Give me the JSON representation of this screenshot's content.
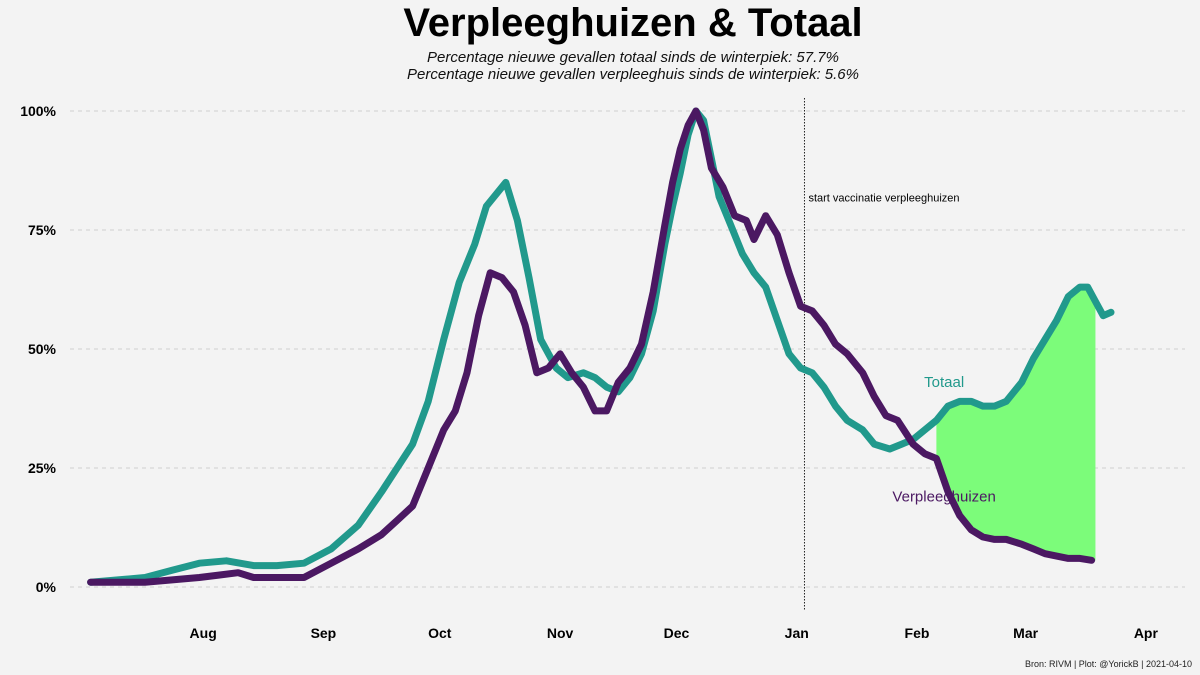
{
  "chart_data": {
    "type": "line",
    "title": "Verpleeghuizen & Totaal",
    "subtitle_lines": [
      "Percentage nieuwe gevallen totaal sinds de winterpiek: 57.7%",
      "Percentage nieuwe gevallen verpleeghuis sinds de winterpiek: 5.6%"
    ],
    "caption": "Bron: RIVM | Plot: @YorickB  |  2021-04-10",
    "xlabel": "",
    "ylabel": "",
    "xlim": [
      "2020-07-15",
      "2021-04-15"
    ],
    "ylim": [
      0,
      100
    ],
    "y_ticks": [
      {
        "value": 0,
        "label": "0%"
      },
      {
        "value": 25,
        "label": "25%"
      },
      {
        "value": 50,
        "label": "50%"
      },
      {
        "value": 75,
        "label": "75%"
      },
      {
        "value": 100,
        "label": "100%"
      }
    ],
    "x_ticks": [
      {
        "date": "2020-08-01",
        "label": "Aug"
      },
      {
        "date": "2020-09-01",
        "label": "Sep"
      },
      {
        "date": "2020-10-01",
        "label": "Oct"
      },
      {
        "date": "2020-11-01",
        "label": "Nov"
      },
      {
        "date": "2020-12-01",
        "label": "Dec"
      },
      {
        "date": "2021-01-01",
        "label": "Jan"
      },
      {
        "date": "2021-02-01",
        "label": "Feb"
      },
      {
        "date": "2021-03-01",
        "label": "Mar"
      },
      {
        "date": "2021-04-01",
        "label": "Apr"
      }
    ],
    "grid": true,
    "vline": {
      "date": "2021-01-18",
      "label": "start vaccinatie verpleeghuizen"
    },
    "fill_between": {
      "from": "2021-02-21",
      "to": "2021-04-03",
      "color": "#7cfc7a"
    },
    "series": [
      {
        "name": "Totaal",
        "color": "#21998c",
        "label_date": "2021-02-23",
        "label_value": 42,
        "points": [
          [
            "2020-07-18",
            1
          ],
          [
            "2020-07-25",
            1.5
          ],
          [
            "2020-08-01",
            2
          ],
          [
            "2020-08-08",
            3.5
          ],
          [
            "2020-08-15",
            5
          ],
          [
            "2020-08-22",
            5.5
          ],
          [
            "2020-08-29",
            4.5
          ],
          [
            "2020-09-04",
            4.5
          ],
          [
            "2020-09-11",
            5
          ],
          [
            "2020-09-18",
            8
          ],
          [
            "2020-09-25",
            13
          ],
          [
            "2020-10-01",
            20
          ],
          [
            "2020-10-05",
            25
          ],
          [
            "2020-10-09",
            30
          ],
          [
            "2020-10-13",
            39
          ],
          [
            "2020-10-17",
            52
          ],
          [
            "2020-10-21",
            64
          ],
          [
            "2020-10-25",
            72
          ],
          [
            "2020-10-28",
            80
          ],
          [
            "2020-10-31",
            83
          ],
          [
            "2020-11-02",
            85
          ],
          [
            "2020-11-05",
            77
          ],
          [
            "2020-11-08",
            65
          ],
          [
            "2020-11-11",
            52
          ],
          [
            "2020-11-15",
            46
          ],
          [
            "2020-11-18",
            44
          ],
          [
            "2020-11-22",
            45
          ],
          [
            "2020-11-25",
            44
          ],
          [
            "2020-11-28",
            42
          ],
          [
            "2020-12-01",
            41
          ],
          [
            "2020-12-04",
            44
          ],
          [
            "2020-12-07",
            49
          ],
          [
            "2020-12-10",
            58
          ],
          [
            "2020-12-13",
            72
          ],
          [
            "2020-12-15",
            80
          ],
          [
            "2020-12-17",
            87
          ],
          [
            "2020-12-19",
            95
          ],
          [
            "2020-12-21",
            100
          ],
          [
            "2020-12-23",
            98
          ],
          [
            "2020-12-25",
            90
          ],
          [
            "2020-12-27",
            82
          ],
          [
            "2020-12-30",
            76
          ],
          [
            "2021-01-02",
            70
          ],
          [
            "2021-01-05",
            66
          ],
          [
            "2021-01-08",
            63
          ],
          [
            "2021-01-11",
            56
          ],
          [
            "2021-01-14",
            49
          ],
          [
            "2021-01-17",
            46
          ],
          [
            "2021-01-20",
            45
          ],
          [
            "2021-01-23",
            42
          ],
          [
            "2021-01-26",
            38
          ],
          [
            "2021-01-29",
            35
          ],
          [
            "2021-02-02",
            33
          ],
          [
            "2021-02-05",
            30
          ],
          [
            "2021-02-09",
            29
          ],
          [
            "2021-02-12",
            30
          ],
          [
            "2021-02-15",
            31
          ],
          [
            "2021-02-18",
            33
          ],
          [
            "2021-02-21",
            35
          ],
          [
            "2021-02-24",
            38
          ],
          [
            "2021-02-27",
            39
          ],
          [
            "2021-03-02",
            39
          ],
          [
            "2021-03-05",
            38
          ],
          [
            "2021-03-08",
            38
          ],
          [
            "2021-03-11",
            39
          ],
          [
            "2021-03-15",
            43
          ],
          [
            "2021-03-18",
            48
          ],
          [
            "2021-03-21",
            52
          ],
          [
            "2021-03-24",
            56
          ],
          [
            "2021-03-27",
            61
          ],
          [
            "2021-03-30",
            63
          ],
          [
            "2021-04-01",
            63
          ],
          [
            "2021-04-03",
            60
          ],
          [
            "2021-04-05",
            57
          ],
          [
            "2021-04-07",
            57.7
          ]
        ]
      },
      {
        "name": "Verpleeghuizen",
        "color": "#4b1862",
        "label_date": "2021-02-23",
        "label_value": 18,
        "points": [
          [
            "2020-07-18",
            1
          ],
          [
            "2020-07-25",
            1
          ],
          [
            "2020-08-01",
            1
          ],
          [
            "2020-08-08",
            1.5
          ],
          [
            "2020-08-15",
            2
          ],
          [
            "2020-08-20",
            2.5
          ],
          [
            "2020-08-25",
            3
          ],
          [
            "2020-08-29",
            2
          ],
          [
            "2020-09-04",
            2
          ],
          [
            "2020-09-11",
            2
          ],
          [
            "2020-09-18",
            5
          ],
          [
            "2020-09-25",
            8
          ],
          [
            "2020-10-01",
            11
          ],
          [
            "2020-10-05",
            14
          ],
          [
            "2020-10-09",
            17
          ],
          [
            "2020-10-13",
            25
          ],
          [
            "2020-10-17",
            33
          ],
          [
            "2020-10-20",
            37
          ],
          [
            "2020-10-23",
            45
          ],
          [
            "2020-10-26",
            57
          ],
          [
            "2020-10-29",
            66
          ],
          [
            "2020-11-01",
            65
          ],
          [
            "2020-11-04",
            62
          ],
          [
            "2020-11-07",
            55
          ],
          [
            "2020-11-10",
            45
          ],
          [
            "2020-11-13",
            46
          ],
          [
            "2020-11-16",
            49
          ],
          [
            "2020-11-19",
            45
          ],
          [
            "2020-11-22",
            42
          ],
          [
            "2020-11-25",
            37
          ],
          [
            "2020-11-28",
            37
          ],
          [
            "2020-12-01",
            43
          ],
          [
            "2020-12-04",
            46
          ],
          [
            "2020-12-07",
            51
          ],
          [
            "2020-12-10",
            62
          ],
          [
            "2020-12-13",
            76
          ],
          [
            "2020-12-15",
            85
          ],
          [
            "2020-12-17",
            92
          ],
          [
            "2020-12-19",
            97
          ],
          [
            "2020-12-21",
            100
          ],
          [
            "2020-12-23",
            96
          ],
          [
            "2020-12-25",
            88
          ],
          [
            "2020-12-28",
            84
          ],
          [
            "2020-12-31",
            78
          ],
          [
            "2021-01-03",
            77
          ],
          [
            "2021-01-05",
            73
          ],
          [
            "2021-01-08",
            78
          ],
          [
            "2021-01-11",
            74
          ],
          [
            "2021-01-14",
            66
          ],
          [
            "2021-01-17",
            59
          ],
          [
            "2021-01-20",
            58
          ],
          [
            "2021-01-23",
            55
          ],
          [
            "2021-01-26",
            51
          ],
          [
            "2021-01-29",
            49
          ],
          [
            "2021-02-02",
            45
          ],
          [
            "2021-02-05",
            40
          ],
          [
            "2021-02-08",
            36
          ],
          [
            "2021-02-11",
            35
          ],
          [
            "2021-02-15",
            30
          ],
          [
            "2021-02-18",
            28
          ],
          [
            "2021-02-21",
            27
          ],
          [
            "2021-02-24",
            20
          ],
          [
            "2021-02-27",
            15
          ],
          [
            "2021-03-02",
            12
          ],
          [
            "2021-03-05",
            10.5
          ],
          [
            "2021-03-08",
            10
          ],
          [
            "2021-03-11",
            10
          ],
          [
            "2021-03-15",
            9
          ],
          [
            "2021-03-18",
            8
          ],
          [
            "2021-03-21",
            7
          ],
          [
            "2021-03-24",
            6.5
          ],
          [
            "2021-03-27",
            6
          ],
          [
            "2021-03-30",
            6
          ],
          [
            "2021-04-02",
            5.6
          ]
        ]
      }
    ]
  }
}
